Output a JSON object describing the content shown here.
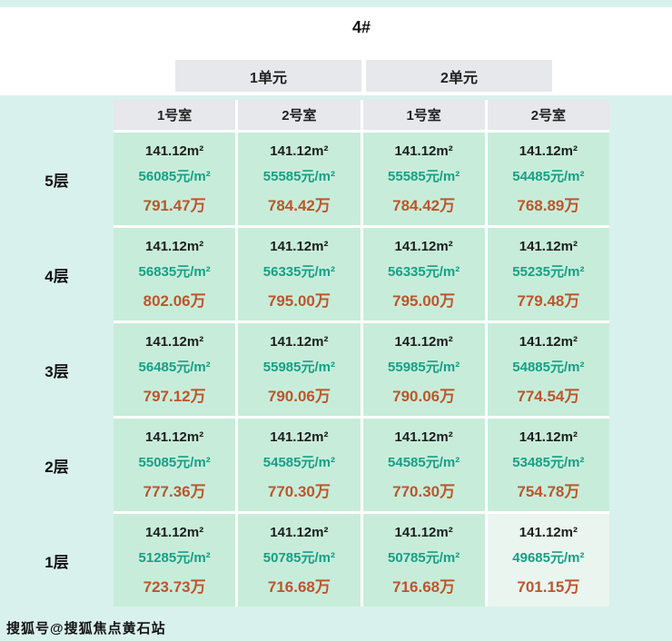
{
  "watermark": "搜狐号@搜狐焦点黄石站",
  "colors": {
    "page_bg": "#d9f1ec",
    "header_gray": "#e6e8eb",
    "cell_mint": "#c7edda",
    "cell_pale": "#eaf5ef",
    "area_text": "#1d1d1d",
    "unit_price_text": "#16a085",
    "total_price_text": "#bd552b"
  },
  "chart_data": {
    "type": "table",
    "title": "4#",
    "unit_headers": [
      "1单元",
      "2单元"
    ],
    "room_headers": [
      "1号室",
      "2号室",
      "1号室",
      "2号室"
    ],
    "floors": [
      {
        "label": "5层",
        "cells": [
          {
            "area": "141.12m²",
            "unit_price": "56085元/m²",
            "total_price": "791.47万"
          },
          {
            "area": "141.12m²",
            "unit_price": "55585元/m²",
            "total_price": "784.42万"
          },
          {
            "area": "141.12m²",
            "unit_price": "55585元/m²",
            "total_price": "784.42万"
          },
          {
            "area": "141.12m²",
            "unit_price": "54485元/m²",
            "total_price": "768.89万"
          }
        ]
      },
      {
        "label": "4层",
        "cells": [
          {
            "area": "141.12m²",
            "unit_price": "56835元/m²",
            "total_price": "802.06万"
          },
          {
            "area": "141.12m²",
            "unit_price": "56335元/m²",
            "total_price": "795.00万"
          },
          {
            "area": "141.12m²",
            "unit_price": "56335元/m²",
            "total_price": "795.00万"
          },
          {
            "area": "141.12m²",
            "unit_price": "55235元/m²",
            "total_price": "779.48万"
          }
        ]
      },
      {
        "label": "3层",
        "cells": [
          {
            "area": "141.12m²",
            "unit_price": "56485元/m²",
            "total_price": "797.12万"
          },
          {
            "area": "141.12m²",
            "unit_price": "55985元/m²",
            "total_price": "790.06万"
          },
          {
            "area": "141.12m²",
            "unit_price": "55985元/m²",
            "total_price": "790.06万"
          },
          {
            "area": "141.12m²",
            "unit_price": "54885元/m²",
            "total_price": "774.54万"
          }
        ]
      },
      {
        "label": "2层",
        "cells": [
          {
            "area": "141.12m²",
            "unit_price": "55085元/m²",
            "total_price": "777.36万"
          },
          {
            "area": "141.12m²",
            "unit_price": "54585元/m²",
            "total_price": "770.30万"
          },
          {
            "area": "141.12m²",
            "unit_price": "54585元/m²",
            "total_price": "770.30万"
          },
          {
            "area": "141.12m²",
            "unit_price": "53485元/m²",
            "total_price": "754.78万"
          }
        ]
      },
      {
        "label": "1层",
        "cells": [
          {
            "area": "141.12m²",
            "unit_price": "51285元/m²",
            "total_price": "723.73万"
          },
          {
            "area": "141.12m²",
            "unit_price": "50785元/m²",
            "total_price": "716.68万"
          },
          {
            "area": "141.12m²",
            "unit_price": "50785元/m²",
            "total_price": "716.68万"
          },
          {
            "area": "141.12m²",
            "unit_price": "49685元/m²",
            "total_price": "701.15万"
          }
        ]
      }
    ]
  }
}
